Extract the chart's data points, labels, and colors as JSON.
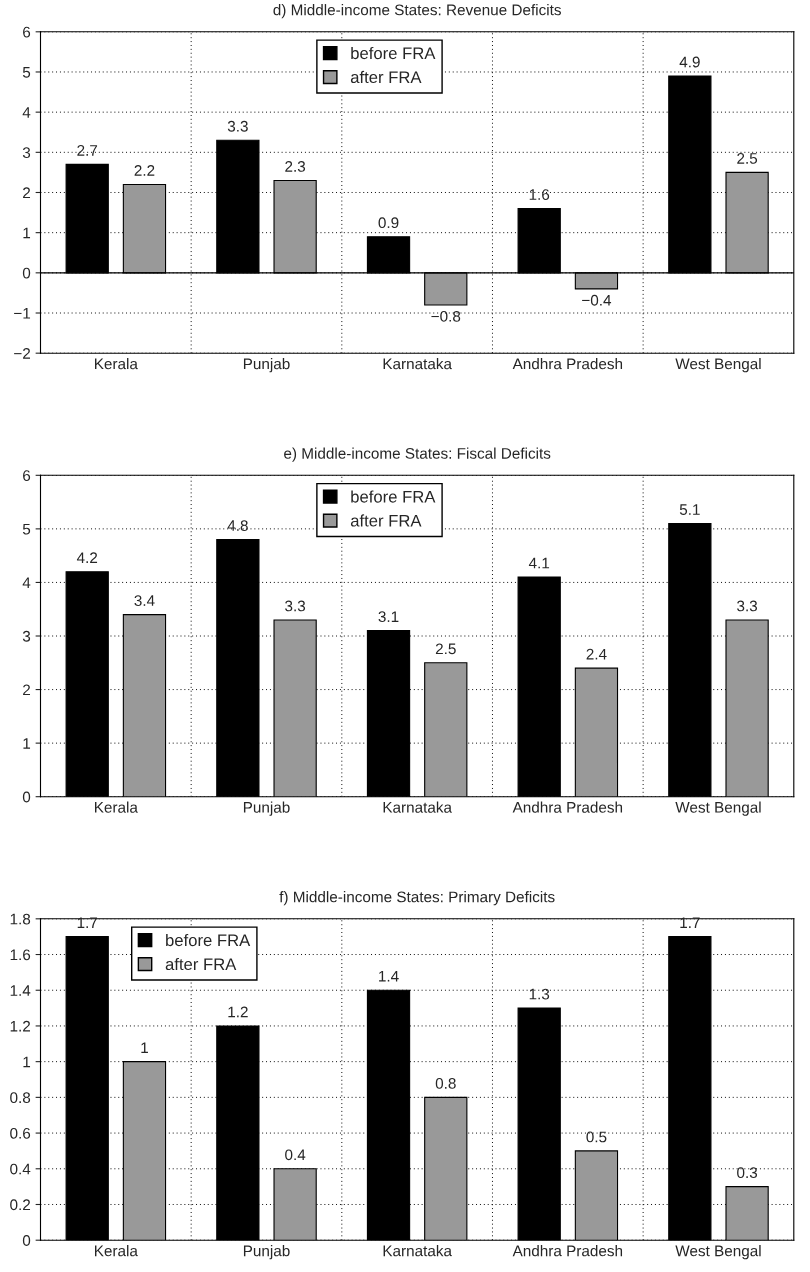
{
  "chart_data": [
    {
      "type": "bar",
      "title": "d) Middle-income States: Revenue Deficits",
      "categories": [
        "Kerala",
        "Punjab",
        "Karnataka",
        "Andhra Pradesh",
        "West Bengal"
      ],
      "series": [
        {
          "name": "before FRA",
          "color": "#000000",
          "values": [
            2.7,
            3.3,
            0.9,
            1.6,
            4.9
          ]
        },
        {
          "name": "after FRA",
          "color": "#999999",
          "values": [
            2.2,
            2.3,
            -0.8,
            -0.4,
            2.5
          ]
        }
      ],
      "ylim": [
        -2,
        6
      ],
      "yticks": [
        {
          "value": -2,
          "label": "−2"
        },
        {
          "value": -1,
          "label": "−1"
        },
        0,
        1,
        2,
        3,
        4,
        5,
        6
      ],
      "grid": true,
      "legend": "top",
      "data_labels": true
    },
    {
      "type": "bar",
      "title": "e) Middle-income States: Fiscal Deficits",
      "categories": [
        "Kerala",
        "Punjab",
        "Karnataka",
        "Andhra Pradesh",
        "West Bengal"
      ],
      "series": [
        {
          "name": "before FRA",
          "color": "#000000",
          "values": [
            4.2,
            4.8,
            3.1,
            4.1,
            5.1
          ]
        },
        {
          "name": "after FRA",
          "color": "#999999",
          "values": [
            3.4,
            3.3,
            2.5,
            2.4,
            3.3
          ]
        }
      ],
      "ylim": [
        0,
        6
      ],
      "yticks": [
        0,
        1,
        2,
        3,
        4,
        5,
        6
      ],
      "grid": true,
      "legend": "top",
      "data_labels": true
    },
    {
      "type": "bar",
      "title": "f) Middle-income States: Primary Deficits",
      "categories": [
        "Kerala",
        "Punjab",
        "Karnataka",
        "Andhra Pradesh",
        "West Bengal"
      ],
      "series": [
        {
          "name": "before FRA",
          "color": "#000000",
          "values": [
            1.7,
            1.2,
            1.4,
            1.3,
            1.7
          ]
        },
        {
          "name": "after FRA",
          "color": "#999999",
          "values": [
            1.0,
            0.4,
            0.8,
            0.5,
            0.3
          ]
        }
      ],
      "ylim": [
        0,
        1.8
      ],
      "yticks": [
        0,
        0.2,
        0.4,
        0.6,
        0.8,
        1,
        1.2,
        1.4,
        1.6,
        1.8
      ],
      "grid": true,
      "legend": "top left",
      "data_labels": true
    }
  ]
}
